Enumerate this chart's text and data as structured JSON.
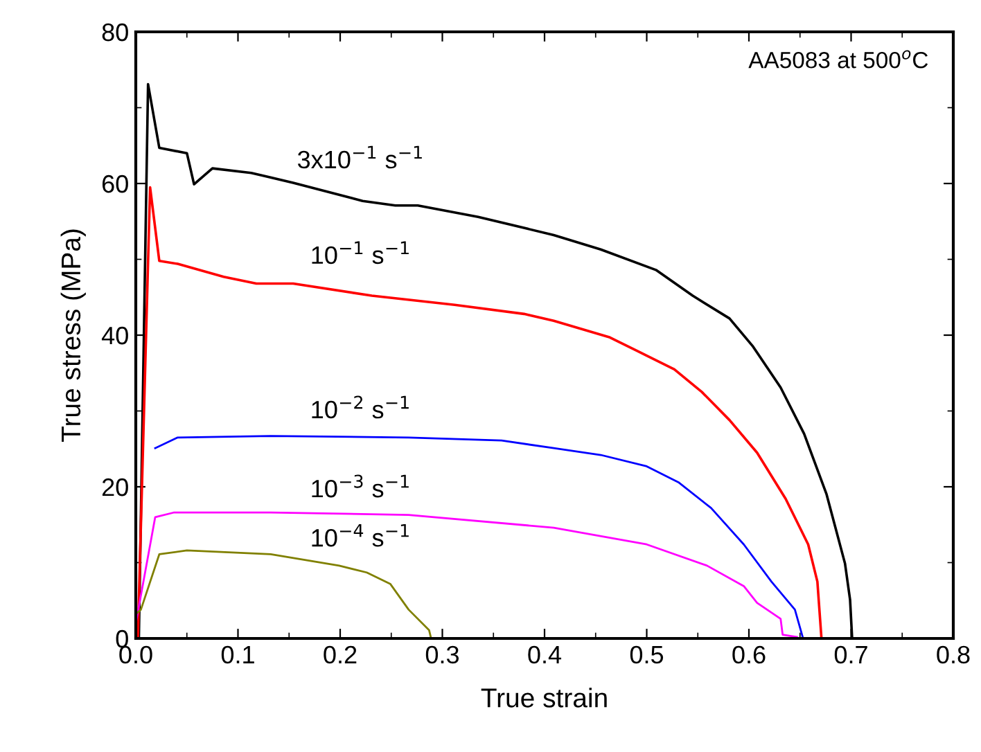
{
  "chart_data": {
    "type": "line",
    "xlabel": "True strain",
    "ylabel": "True stress (MPa)",
    "xlim": [
      0,
      0.8
    ],
    "ylim": [
      0,
      80
    ],
    "xticks": [
      {
        "value": 0,
        "label": "0.0"
      },
      0.1,
      0.2,
      0.3,
      0.4,
      0.5,
      0.6,
      0.7,
      0.8
    ],
    "yticks": [
      0,
      20,
      40,
      60,
      80
    ],
    "grid": false,
    "legend": false,
    "marker": "none",
    "line_style": "solid",
    "annotations": [
      "AA5083 at 500$^{o}$C"
    ],
    "series": [
      {
        "name": "3x10$^{−1}$ s$^{−1}$",
        "color": "#000000",
        "x": [
          0.003,
          0.012,
          0.023,
          0.05,
          0.057,
          0.075,
          0.113,
          0.154,
          0.222,
          0.254,
          0.276,
          0.335,
          0.409,
          0.455,
          0.509,
          0.545,
          0.581,
          0.604,
          0.631,
          0.654,
          0.676,
          0.694,
          0.699,
          0.701
        ],
        "values": [
          0,
          73.1,
          64.7,
          64.0,
          59.9,
          62.0,
          61.4,
          60.1,
          57.7,
          57.1,
          57.1,
          55.6,
          53.2,
          51.3,
          48.6,
          45.2,
          42.2,
          38.5,
          33.1,
          27.0,
          19.0,
          9.9,
          5.1,
          0
        ]
      },
      {
        "name": "10$^{−1}$ s$^{−1}$",
        "color": "#ff0000",
        "x": [
          0.002,
          0.014,
          0.023,
          0.041,
          0.086,
          0.118,
          0.154,
          0.231,
          0.312,
          0.38,
          0.409,
          0.464,
          0.5,
          0.527,
          0.554,
          0.581,
          0.608,
          0.636,
          0.658,
          0.667,
          0.671
        ],
        "values": [
          0,
          59.5,
          49.8,
          49.4,
          47.7,
          46.8,
          46.8,
          45.2,
          44.0,
          42.8,
          41.9,
          39.7,
          37.3,
          35.5,
          32.5,
          28.8,
          24.5,
          18.4,
          12.4,
          7.5,
          0
        ]
      },
      {
        "name": "10$^{−2}$ s$^{−1}$",
        "color": "#0000ff",
        "x": [
          0.019,
          0.041,
          0.132,
          0.267,
          0.358,
          0.409,
          0.455,
          0.5,
          0.531,
          0.563,
          0.595,
          0.622,
          0.645,
          0.653
        ],
        "values": [
          25.1,
          26.5,
          26.7,
          26.5,
          26.1,
          25.1,
          24.2,
          22.7,
          20.6,
          17.2,
          12.4,
          7.5,
          3.8,
          0
        ]
      },
      {
        "name": "10$^{−3}$ s$^{−1}$",
        "color": "#ff00ff",
        "x": [
          0.0,
          0.019,
          0.037,
          0.132,
          0.267,
          0.409,
          0.5,
          0.559,
          0.595,
          0.608,
          0.631,
          0.633,
          0.647
        ],
        "values": [
          2.0,
          16.0,
          16.6,
          16.6,
          16.3,
          14.6,
          12.4,
          9.6,
          6.9,
          4.7,
          2.6,
          0.5,
          0.2
        ]
      },
      {
        "name": "10$^{−4}$ s$^{−1}$",
        "color": "#808000",
        "x": [
          0.0,
          0.005,
          0.023,
          0.05,
          0.132,
          0.199,
          0.226,
          0.249,
          0.267,
          0.287,
          0.289
        ],
        "values": [
          3.2,
          3.8,
          11.1,
          11.6,
          11.1,
          9.6,
          8.7,
          7.2,
          3.8,
          1.1,
          0
        ]
      }
    ]
  }
}
